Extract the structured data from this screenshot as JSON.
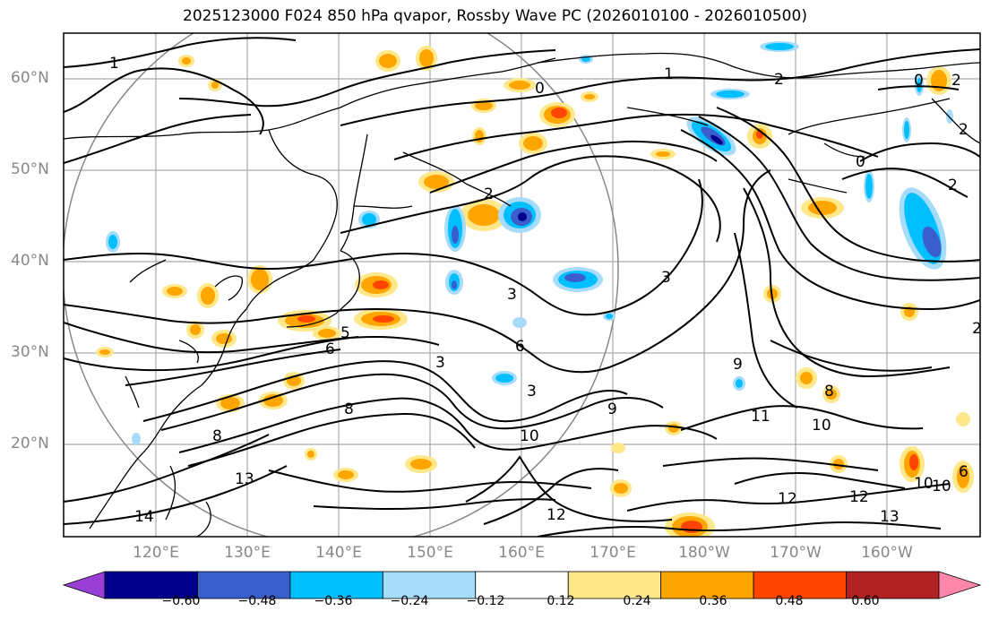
{
  "title": "2025123000 F024 850 hPa qvapor, Rossby Wave PC (2026010100 - 2026010500)",
  "axes": {
    "lat_labels": [
      "60°N",
      "50°N",
      "40°N",
      "30°N",
      "20°N"
    ],
    "lon_labels": [
      "120°E",
      "130°E",
      "140°E",
      "150°E",
      "160°E",
      "170°E",
      "180°W",
      "170°W",
      "160°W"
    ]
  },
  "contour_labels": [
    "1",
    "0",
    "2",
    "1",
    "2",
    "3",
    "0",
    "2",
    "3",
    "3",
    "6",
    "3",
    "5",
    "6",
    "8",
    "9",
    "11",
    "10",
    "10",
    "8",
    "13",
    "12",
    "14",
    "12",
    "13",
    "8",
    "9",
    "2",
    "12",
    "10",
    "2",
    "10",
    "6",
    "0",
    "2"
  ],
  "colorbar": {
    "ticks": [
      "−0.60",
      "−0.48",
      "−0.36",
      "−0.24",
      "−0.12",
      "0.12",
      "0.24",
      "0.36",
      "0.48",
      "0.60"
    ],
    "colors": [
      "#9a3fd6",
      "#00008b",
      "#3a5fcd",
      "#00bfff",
      "#a6dcfa",
      "#ffffff",
      "#ffe88a",
      "#ffa500",
      "#ff4500",
      "#b22222",
      "#ff88aa"
    ]
  }
}
